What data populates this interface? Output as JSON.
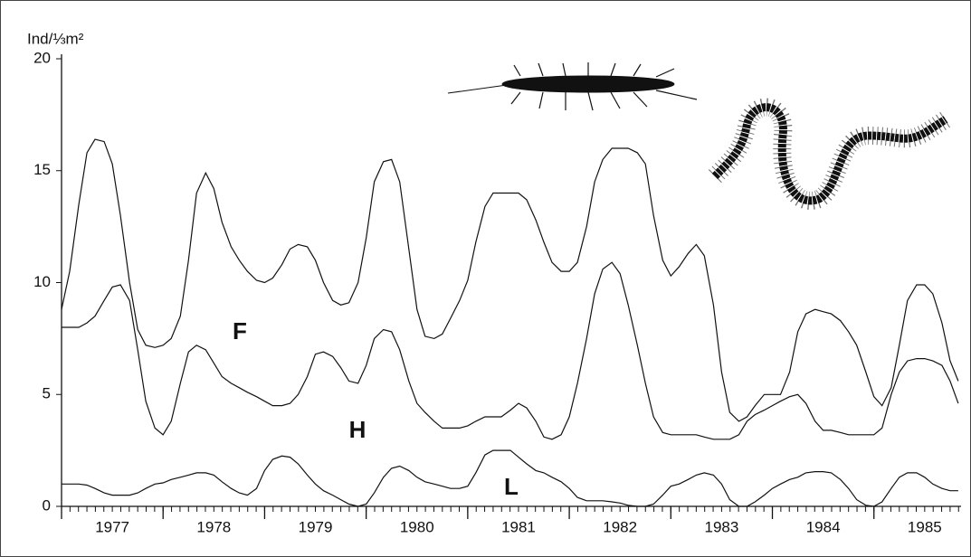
{
  "chart_data": {
    "type": "line",
    "y_label": "Ind/⅓m²",
    "x": [
      1977,
      1977.08,
      1977.17,
      1977.25,
      1977.33,
      1977.42,
      1977.5,
      1977.58,
      1977.67,
      1977.75,
      1977.83,
      1977.92,
      1978,
      1978.08,
      1978.17,
      1978.25,
      1978.33,
      1978.42,
      1978.5,
      1978.58,
      1978.67,
      1978.75,
      1978.83,
      1978.92,
      1979,
      1979.08,
      1979.17,
      1979.25,
      1979.33,
      1979.42,
      1979.5,
      1979.58,
      1979.67,
      1979.75,
      1979.83,
      1979.92,
      1980,
      1980.08,
      1980.17,
      1980.25,
      1980.33,
      1980.42,
      1980.5,
      1980.58,
      1980.67,
      1980.75,
      1980.83,
      1980.92,
      1981,
      1981.08,
      1981.17,
      1981.25,
      1981.33,
      1981.42,
      1981.5,
      1981.58,
      1981.67,
      1981.75,
      1981.83,
      1981.92,
      1982,
      1982.08,
      1982.17,
      1982.25,
      1982.33,
      1982.42,
      1982.5,
      1982.58,
      1982.67,
      1982.75,
      1982.83,
      1982.92,
      1983,
      1983.08,
      1983.17,
      1983.25,
      1983.33,
      1983.42,
      1983.5,
      1983.58,
      1983.67,
      1983.75,
      1983.83,
      1983.92,
      1984,
      1984.08,
      1984.17,
      1984.25,
      1984.33,
      1984.42,
      1984.5,
      1984.58,
      1984.67,
      1984.75,
      1984.83,
      1984.92,
      1985,
      1985.08,
      1985.17,
      1985.25,
      1985.33,
      1985.42,
      1985.5,
      1985.58,
      1985.67,
      1985.75,
      1985.83
    ],
    "series": [
      {
        "name": "F",
        "color": "#111111",
        "values": [
          8.8,
          10.5,
          13.5,
          15.8,
          16.4,
          16.3,
          15.3,
          13,
          10,
          7.9,
          7.2,
          7.1,
          7.2,
          7.5,
          8.5,
          11,
          14,
          14.9,
          14.2,
          12.7,
          11.6,
          11,
          10.5,
          10.1,
          10,
          10.2,
          10.8,
          11.5,
          11.7,
          11.6,
          11,
          10,
          9.2,
          9,
          9.1,
          10,
          12,
          14.5,
          15.4,
          15.5,
          14.5,
          11.5,
          8.8,
          7.6,
          7.5,
          7.7,
          8.4,
          9.2,
          10.1,
          11.8,
          13.4,
          14,
          14,
          14,
          14,
          13.7,
          12.8,
          11.8,
          10.9,
          10.5,
          10.5,
          10.9,
          12.5,
          14.5,
          15.5,
          16,
          16,
          16,
          15.8,
          15.3,
          13,
          11,
          10.3,
          10.7,
          11.3,
          11.7,
          11.2,
          9,
          6,
          4.2,
          3.8,
          4,
          4.5,
          5,
          5,
          5,
          6,
          7.8,
          8.6,
          8.8,
          8.7,
          8.6,
          8.3,
          7.8,
          7.2,
          6,
          4.9,
          4.5,
          5.3,
          7.2,
          9.2,
          9.9,
          9.9,
          9.5,
          8.2,
          6.5,
          5.6
        ]
      },
      {
        "name": "H",
        "color": "#111111",
        "values": [
          8,
          8,
          8,
          8.2,
          8.5,
          9.2,
          9.8,
          9.9,
          9.2,
          7,
          4.7,
          3.5,
          3.2,
          3.8,
          5.5,
          6.9,
          7.2,
          7,
          6.4,
          5.8,
          5.5,
          5.3,
          5.1,
          4.9,
          4.7,
          4.5,
          4.5,
          4.6,
          5,
          5.8,
          6.8,
          6.9,
          6.7,
          6.2,
          5.6,
          5.5,
          6.3,
          7.5,
          7.9,
          7.8,
          7,
          5.6,
          4.6,
          4.2,
          3.8,
          3.5,
          3.5,
          3.5,
          3.6,
          3.8,
          4,
          4,
          4,
          4.3,
          4.6,
          4.4,
          3.8,
          3.1,
          3,
          3.2,
          4,
          5.5,
          7.5,
          9.5,
          10.6,
          10.9,
          10.4,
          9,
          7.2,
          5.5,
          4,
          3.3,
          3.2,
          3.2,
          3.2,
          3.2,
          3.1,
          3,
          3,
          3,
          3.2,
          3.8,
          4.1,
          4.3,
          4.5,
          4.7,
          4.9,
          5,
          4.6,
          3.8,
          3.4,
          3.4,
          3.3,
          3.2,
          3.2,
          3.2,
          3.2,
          3.5,
          5,
          6,
          6.5,
          6.6,
          6.6,
          6.5,
          6.3,
          5.6,
          4.6
        ]
      },
      {
        "name": "L",
        "color": "#111111",
        "values": [
          1,
          1,
          1,
          0.95,
          0.8,
          0.6,
          0.5,
          0.5,
          0.5,
          0.6,
          0.8,
          1,
          1.05,
          1.2,
          1.3,
          1.4,
          1.5,
          1.5,
          1.4,
          1.1,
          0.8,
          0.6,
          0.5,
          0.8,
          1.6,
          2.1,
          2.25,
          2.2,
          1.9,
          1.4,
          1,
          0.7,
          0.5,
          0.3,
          0.1,
          0,
          0.1,
          0.6,
          1.3,
          1.7,
          1.8,
          1.6,
          1.3,
          1.1,
          1,
          0.9,
          0.8,
          0.8,
          0.9,
          1.5,
          2.3,
          2.5,
          2.5,
          2.5,
          2.2,
          1.9,
          1.6,
          1.5,
          1.3,
          1.1,
          0.8,
          0.4,
          0.25,
          0.25,
          0.25,
          0.2,
          0.15,
          0.05,
          0,
          0,
          0.1,
          0.5,
          0.9,
          1,
          1.2,
          1.4,
          1.5,
          1.4,
          1,
          0.3,
          0,
          0,
          0.2,
          0.5,
          0.8,
          1,
          1.2,
          1.3,
          1.5,
          1.55,
          1.55,
          1.5,
          1.2,
          0.8,
          0.3,
          0.05,
          0,
          0.2,
          0.8,
          1.3,
          1.5,
          1.5,
          1.3,
          1,
          0.8,
          0.7,
          0.7
        ]
      }
    ],
    "xlim": [
      1977,
      1985.84
    ],
    "xticks": [
      1977,
      1978,
      1979,
      1980,
      1981,
      1982,
      1983,
      1984,
      1985
    ],
    "xtick_labels": [
      {
        "value": 1977.5,
        "label": "1977"
      },
      {
        "value": 1978.5,
        "label": "1978"
      },
      {
        "value": 1979.5,
        "label": "1979"
      },
      {
        "value": 1980.5,
        "label": "1980"
      },
      {
        "value": 1981.5,
        "label": "1981"
      },
      {
        "value": 1982.5,
        "label": "1982"
      },
      {
        "value": 1983.5,
        "label": "1983"
      },
      {
        "value": 1984.5,
        "label": "1984"
      },
      {
        "value": 1985.5,
        "label": "1985"
      }
    ],
    "ylim": [
      0,
      20
    ],
    "yticks": [
      0,
      5,
      10,
      15,
      20
    ],
    "grid": false
  }
}
